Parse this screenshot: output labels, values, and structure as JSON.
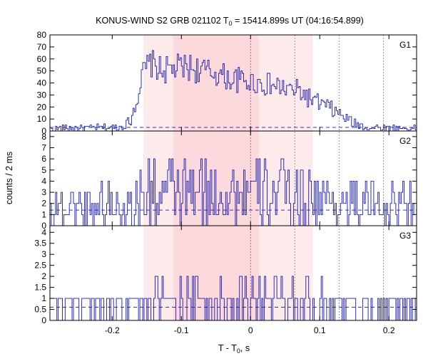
{
  "chart_data": {
    "type": "line",
    "title_main": "KONUS-WIND S2 GRB 021102 T",
    "title_sub": "0",
    "title_rest": " = 15414.899s UT (04:16:54.899)",
    "xlabel_main": "T - T",
    "xlabel_sub": "0",
    "xlabel_rest": ", s",
    "ylabel": "counts / 2 ms",
    "xlim": [
      -0.29,
      0.24
    ],
    "x_ticks": [
      -0.2,
      -0.1,
      0,
      0.1,
      0.2
    ],
    "x_tick_labels": [
      "-0.2",
      "-0.1",
      "0",
      "0.1",
      "0.2"
    ],
    "shaded_regions": [
      {
        "start": -0.155,
        "end": -0.112,
        "color": "#fdeaea"
      },
      {
        "start": -0.112,
        "end": 0.012,
        "color": "#fbd9dd"
      },
      {
        "start": 0.012,
        "end": 0.09,
        "color": "#fdeaea"
      }
    ],
    "vertical_lines": [
      {
        "x": 0.0,
        "color": "#555555"
      },
      {
        "x": 0.064,
        "color": "#996666"
      },
      {
        "x": 0.128,
        "color": "#666666"
      },
      {
        "x": 0.192,
        "color": "#666666"
      }
    ],
    "panels": [
      {
        "name": "G1",
        "label": "G1",
        "ylim": [
          0,
          80
        ],
        "y_ticks": [
          0,
          10,
          20,
          30,
          40,
          50,
          60,
          70,
          80
        ],
        "y_tick_labels": [
          "0",
          "10",
          "20",
          "30",
          "40",
          "50",
          "60",
          "70",
          "80"
        ],
        "background": 3,
        "envelope": [
          [
            -0.29,
            2
          ],
          [
            -0.19,
            3
          ],
          [
            -0.175,
            8
          ],
          [
            -0.165,
            28
          ],
          [
            -0.155,
            50
          ],
          [
            -0.145,
            57
          ],
          [
            -0.13,
            50
          ],
          [
            -0.11,
            52
          ],
          [
            -0.09,
            53
          ],
          [
            -0.07,
            50
          ],
          [
            -0.05,
            48
          ],
          [
            -0.03,
            43
          ],
          [
            -0.01,
            42
          ],
          [
            0.01,
            40
          ],
          [
            0.03,
            38
          ],
          [
            0.05,
            35
          ],
          [
            0.07,
            33
          ],
          [
            0.09,
            25
          ],
          [
            0.11,
            20
          ],
          [
            0.13,
            13
          ],
          [
            0.15,
            6
          ],
          [
            0.17,
            3
          ],
          [
            0.24,
            2
          ]
        ],
        "spikes": {
          "a": 0.035,
          "b": 0.045,
          "c": 0.09
        },
        "noise": 0.6
      },
      {
        "name": "G2",
        "label": "G2",
        "ylim": [
          0,
          8.5
        ],
        "y_ticks": [
          0,
          1,
          2,
          3,
          4,
          5,
          6,
          7,
          8
        ],
        "y_tick_labels": [
          "0",
          "1",
          "2",
          "3",
          "4",
          "5",
          "6",
          "7",
          "8"
        ],
        "background": 1.4,
        "envelope": [
          [
            -0.29,
            1.8
          ],
          [
            -0.17,
            2
          ],
          [
            -0.155,
            2.8
          ],
          [
            -0.12,
            3
          ],
          [
            -0.05,
            3
          ],
          [
            0,
            2.9
          ],
          [
            0.06,
            2.8
          ],
          [
            0.09,
            2.5
          ],
          [
            0.13,
            2
          ],
          [
            0.24,
            1.8
          ]
        ],
        "spikes": {
          "a": 0.02,
          "b": 0.04,
          "c": 0.1
        },
        "noise": 1.1
      },
      {
        "name": "G3",
        "label": "G3",
        "ylim": [
          0,
          4.3
        ],
        "y_ticks": [
          0,
          0.5,
          1,
          1.5,
          2,
          2.5,
          3,
          3.5,
          4
        ],
        "y_tick_labels": [
          "0",
          "0.5",
          "1",
          "1.5",
          "2",
          "2.5",
          "3",
          "3.5",
          "4"
        ],
        "background": 0.6,
        "envelope": [
          [
            -0.29,
            0.7
          ],
          [
            -0.16,
            0.8
          ],
          [
            -0.1,
            0.9
          ],
          [
            0,
            0.9
          ],
          [
            0.06,
            1
          ],
          [
            0.1,
            0.8
          ],
          [
            0.24,
            0.6
          ]
        ],
        "spikes": {
          "a": 0.015,
          "b": 0.03,
          "c": 0.1
        },
        "noise": 1.1
      }
    ]
  }
}
